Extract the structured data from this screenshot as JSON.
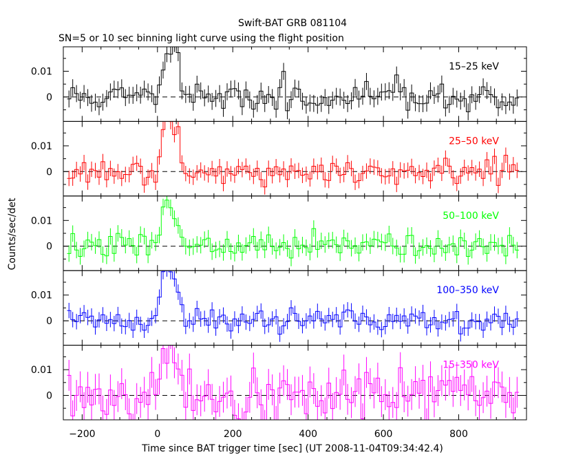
{
  "title": "Swift-BAT GRB 081104",
  "subtitle": "SN=5 or 10 sec binning light curve using the flight position",
  "chart_data": {
    "type": "line",
    "title": "Swift-BAT GRB 081104",
    "subtitle": "SN=5 or 10 sec binning light curve using the flight position",
    "xlabel": "Time since BAT trigger time [sec] (UT 2008-11-04T09:34:42.4)",
    "ylabel": "Counts/sec/det",
    "xlim": [
      -250,
      980
    ],
    "xticks": [
      -200,
      0,
      200,
      400,
      600,
      800
    ],
    "xtick_labels": [
      "−200",
      "0",
      "200",
      "400",
      "600",
      "800"
    ],
    "ylim": [
      -0.0095,
      0.0195
    ],
    "yticks": [
      0,
      0.01
    ],
    "ytick_labels": [
      "0",
      "0.01"
    ],
    "reference_line": {
      "y": 0,
      "style": "dashed"
    },
    "bin_width": 10,
    "x_start": -240,
    "x_end": 960,
    "panels": [
      {
        "name": "15–25 keV",
        "color": "#000000",
        "noise": 0.0028,
        "err": 0.0033,
        "seed": 11
      },
      {
        "name": "25–50 keV",
        "color": "#ff0000",
        "noise": 0.0024,
        "err": 0.003,
        "seed": 23
      },
      {
        "name": "50–100 keV",
        "color": "#00ff00",
        "noise": 0.0026,
        "err": 0.0032,
        "seed": 37
      },
      {
        "name": "100–350 keV",
        "color": "#0000ff",
        "noise": 0.0024,
        "err": 0.003,
        "seed": 41
      },
      {
        "name": "15–350 keV",
        "color": "#ff00ff",
        "noise": 0.0055,
        "err": 0.006,
        "seed": 53
      }
    ],
    "burst": {
      "start": 0,
      "end": 60,
      "peak": 40,
      "description_values": [
        {
          "x": 0,
          "y": 0.008
        },
        {
          "x": 10,
          "y": 0.016
        },
        {
          "x": 20,
          "y": 0.019
        },
        {
          "x": 30,
          "y": 0.018
        },
        {
          "x": 40,
          "y": 0.019
        },
        {
          "x": 50,
          "y": 0.012
        },
        {
          "x": 60,
          "y": 0.004
        }
      ]
    }
  }
}
